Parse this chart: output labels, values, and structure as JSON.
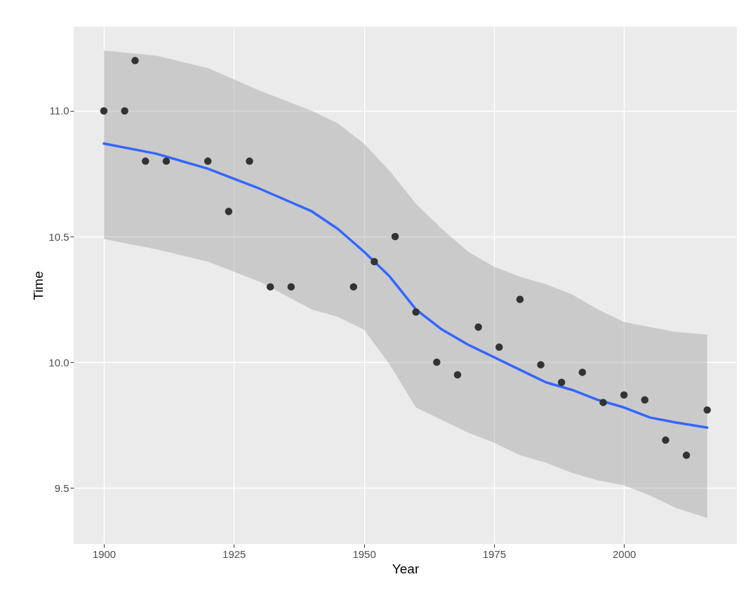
{
  "chart_data": {
    "type": "scatter",
    "xlabel": "Year",
    "ylabel": "Time",
    "xlim": [
      1894.2,
      2021.7
    ],
    "ylim": [
      9.277,
      11.335
    ],
    "xticks": [
      1900,
      1925,
      1950,
      1975,
      2000
    ],
    "yticks": [
      9.5,
      {
        "value": 10,
        "label": "10.0"
      },
      10.5,
      {
        "value": 11,
        "label": "11.0"
      }
    ],
    "grid": true,
    "series": [
      {
        "color": "#333333",
        "marker": "circle",
        "x": [
          1900,
          1904,
          1906,
          1908,
          1912,
          1920,
          1924,
          1928,
          1932,
          1936,
          1948,
          1952,
          1956,
          1960,
          1964,
          1968,
          1972,
          1976,
          1980,
          1984,
          1988,
          1992,
          1996,
          2000,
          2004,
          2008,
          2012,
          2016
        ],
        "values": [
          11.0,
          11.0,
          11.2,
          10.8,
          10.8,
          10.8,
          10.6,
          10.8,
          10.3,
          10.3,
          10.3,
          10.4,
          10.5,
          10.2,
          10.0,
          9.95,
          10.14,
          10.06,
          10.25,
          9.99,
          9.92,
          9.96,
          9.84,
          9.87,
          9.85,
          9.69,
          9.63,
          9.81
        ]
      },
      {
        "type": "line",
        "color": "#3366ff",
        "marker": "none",
        "x": [
          1900,
          1910,
          1920,
          1930,
          1940,
          1945,
          1950,
          1955,
          1960,
          1965,
          1970,
          1975,
          1980,
          1985,
          1990,
          1995,
          2000,
          2005,
          2010,
          2016
        ],
        "values": [
          10.87,
          10.83,
          10.77,
          10.69,
          10.6,
          10.53,
          10.44,
          10.34,
          10.21,
          10.13,
          10.07,
          10.02,
          9.97,
          9.92,
          9.89,
          9.85,
          9.82,
          9.78,
          9.76,
          9.74
        ],
        "lower": [
          10.49,
          10.45,
          10.4,
          10.32,
          10.21,
          10.18,
          10.13,
          9.99,
          9.82,
          9.77,
          9.72,
          9.68,
          9.63,
          9.6,
          9.56,
          9.53,
          9.51,
          9.47,
          9.42,
          9.38
        ],
        "upper": [
          11.24,
          11.22,
          11.17,
          11.08,
          11.0,
          10.95,
          10.87,
          10.76,
          10.63,
          10.53,
          10.44,
          10.38,
          10.34,
          10.31,
          10.27,
          10.21,
          10.16,
          10.14,
          10.12,
          10.11
        ]
      }
    ]
  }
}
